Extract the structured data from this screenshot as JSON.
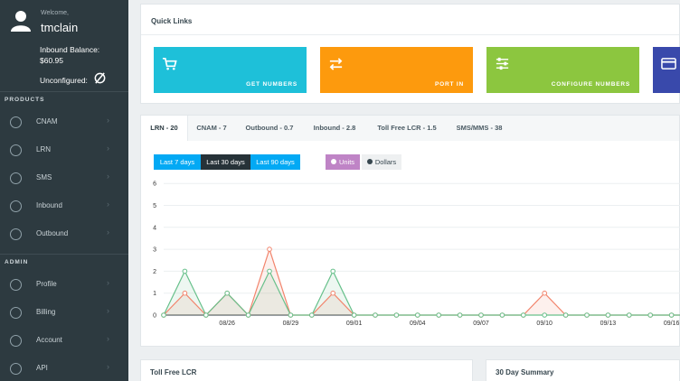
{
  "user": {
    "welcome": "Welcome,",
    "name": "tmclain"
  },
  "balance": {
    "label": "Inbound Balance:",
    "value": "$60.95"
  },
  "status": {
    "label": "Unconfigured:"
  },
  "sections": {
    "products": "PRODUCTS",
    "admin": "ADMIN"
  },
  "nav_products": [
    {
      "label": "CNAM",
      "icon": "cnam-icon"
    },
    {
      "label": "LRN",
      "icon": "lrn-icon"
    },
    {
      "label": "SMS",
      "icon": "sms-icon"
    },
    {
      "label": "Inbound",
      "icon": "inbound-icon"
    },
    {
      "label": "Outbound",
      "icon": "outbound-icon"
    }
  ],
  "nav_admin": [
    {
      "label": "Profile",
      "icon": "profile-icon"
    },
    {
      "label": "Billing",
      "icon": "billing-icon"
    },
    {
      "label": "Account",
      "icon": "account-icon"
    },
    {
      "label": "API",
      "icon": "api-icon"
    }
  ],
  "quick_links": {
    "title": "Quick Links",
    "tiles": [
      {
        "label": "GET NUMBERS",
        "color": "#1ec0d9",
        "icon": "cart-icon"
      },
      {
        "label": "PORT IN",
        "color": "#fd9a0d",
        "icon": "swap-icon"
      },
      {
        "label": "CONFIGURE NUMBERS",
        "color": "#8cc63f",
        "icon": "sliders-icon"
      },
      {
        "label": "",
        "color": "#3949ab",
        "icon": "card-icon"
      }
    ]
  },
  "tabs": [
    {
      "label": "LRN - 20",
      "active": true
    },
    {
      "label": "CNAM - 7"
    },
    {
      "label": "Outbound - 0.7"
    },
    {
      "label": "Inbound - 2.8"
    },
    {
      "label": "Toll Free LCR - 1.5"
    },
    {
      "label": "SMS/MMS - 38"
    }
  ],
  "ranges": {
    "d7": "Last 7 days",
    "d30": "Last 30 days",
    "d90": "Last 90 days"
  },
  "legend": {
    "units": "Units",
    "dollars": "Dollars"
  },
  "colors": {
    "sidebar": "#2d3a40",
    "units": "#bf84c6",
    "dollars": "#37474f",
    "red_line": "#f2846c",
    "green_line": "#67c08b",
    "range_active": "#263238",
    "range": "#03a9f4"
  },
  "chart_data": {
    "type": "line",
    "x_tick_labels": [
      "08/26",
      "08/29",
      "09/01",
      "09/04",
      "09/07",
      "09/10",
      "09/13",
      "09/16"
    ],
    "y_tick_labels": [
      "0",
      "1",
      "2",
      "3",
      "4",
      "5",
      "6"
    ],
    "ylim": [
      0,
      6
    ],
    "series": [
      {
        "color": "#f2846c",
        "values": [
          0,
          1,
          0,
          1,
          0,
          3,
          0,
          0,
          1,
          0,
          0,
          0,
          0,
          0,
          0,
          0,
          0,
          0,
          1,
          0,
          0,
          0,
          0,
          0,
          0,
          0,
          0,
          0,
          0,
          0
        ]
      },
      {
        "color": "#67c08b",
        "values": [
          0,
          2,
          0,
          1,
          0,
          2,
          0,
          0,
          2,
          0,
          0,
          0,
          0,
          0,
          0,
          0,
          0,
          0,
          0,
          0,
          0,
          0,
          0,
          0,
          0,
          0,
          0,
          0,
          0,
          0
        ]
      }
    ]
  },
  "bottom_panels": {
    "left": "Toll Free LCR",
    "right": "30 Day Summary"
  }
}
